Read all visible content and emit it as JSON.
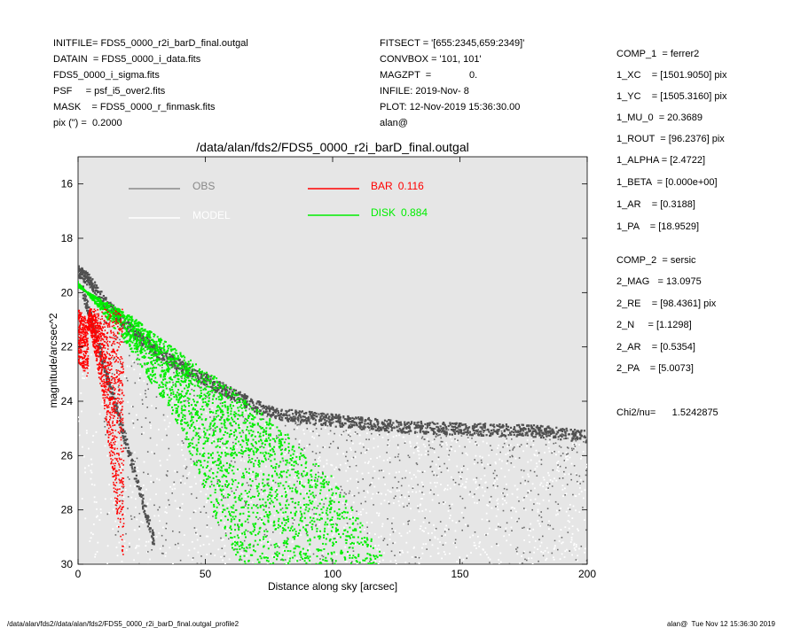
{
  "header_left": [
    "INITFILE= FDS5_0000_r2i_barD_final.outgal",
    "DATAIN  = FDS5_0000_i_data.fits",
    "FDS5_0000_i_sigma.fits",
    "PSF     = psf_i5_over2.fits",
    "MASK    = FDS5_0000_r_finmask.fits",
    "pix (\") =  0.2000"
  ],
  "header_mid": [
    "FITSECT = '[655:2345,659:2349]'",
    "CONVBOX = '101, 101'",
    "MAGZPT  =              0.",
    "INFILE: 2019-Nov- 8",
    "PLOT: 12-Nov-2019 15:36:30.00",
    "alan@"
  ],
  "params": [
    "COMP_1  = ferrer2",
    "1_XC    = [1501.9050] pix",
    "1_YC    = [1505.3160] pix",
    "1_MU_0  = 20.3689",
    "1_ROUT  = [96.2376] pix",
    "1_ALPHA = [2.4722]",
    "1_BETA  = [0.000e+00]",
    "1_AR    = [0.3188]",
    "1_PA    = [18.9529]",
    "",
    "COMP_2  = sersic",
    "2_MAG   = 13.0975",
    "2_RE    = [98.4361] pix",
    "2_N     = [1.1298]",
    "2_AR    = [0.5354]",
    "2_PA    = [5.0073]",
    "",
    "",
    "Chi2/nu=      1.5242875"
  ],
  "footer_left": "/data/alan/fds2//data/alan/fds2/FDS5_0000_r2i_barD_final.outgal_profile2",
  "footer_right": "alan@  Tue Nov 12 15:36:30 2019",
  "colors": {
    "background": "#e6e6e6",
    "obs": "#505050",
    "model": "#ffffff",
    "bar": "#ff0000",
    "disk": "#00ee00"
  },
  "chart_data": {
    "type": "scatter",
    "title": "/data/alan/fds2/FDS5_0000_r2i_barD_final.outgal",
    "xlabel": "Distance along sky [arcsec]",
    "ylabel": "magnitude/arcsec^2",
    "xlim": [
      0,
      200
    ],
    "ylim": [
      30,
      15
    ],
    "y_inverted": true,
    "xticks": [
      0,
      50,
      100,
      150,
      200
    ],
    "yticks": [
      16,
      18,
      20,
      22,
      24,
      26,
      28,
      30
    ],
    "grid": false,
    "legend_position": "top",
    "legend": [
      {
        "name": "OBS",
        "color": "#888888"
      },
      {
        "name": "MODEL",
        "color": "#ffffff"
      },
      {
        "name": "BAR",
        "value": "0.116",
        "color": "#ff0000"
      },
      {
        "name": "DISK",
        "value": "0.884",
        "color": "#00ee00"
      }
    ],
    "series": [
      {
        "name": "OBS",
        "profile": [
          [
            0,
            19.2
          ],
          [
            5,
            19.6
          ],
          [
            10,
            20.3
          ],
          [
            20,
            21.3
          ],
          [
            30,
            22.1
          ],
          [
            40,
            22.7
          ],
          [
            50,
            23.2
          ],
          [
            60,
            23.7
          ],
          [
            70,
            24.2
          ],
          [
            80,
            24.5
          ],
          [
            90,
            24.6
          ],
          [
            100,
            24.7
          ],
          [
            120,
            24.9
          ],
          [
            140,
            25.0
          ],
          [
            160,
            25.05
          ],
          [
            180,
            25.1
          ],
          [
            200,
            25.3
          ]
        ]
      },
      {
        "name": "BAR",
        "profile": [
          [
            0,
            20.5
          ],
          [
            5,
            21.5
          ],
          [
            10,
            24.0
          ],
          [
            15,
            28.0
          ],
          [
            18,
            30.0
          ]
        ]
      },
      {
        "name": "DISK",
        "inner_edge": [
          [
            0,
            19.6
          ],
          [
            20,
            22.0
          ],
          [
            40,
            25.0
          ],
          [
            55,
            28.5
          ],
          [
            64,
            30.0
          ]
        ],
        "outer_edge": [
          [
            0,
            19.8
          ],
          [
            20,
            20.8
          ],
          [
            40,
            22.2
          ],
          [
            60,
            23.5
          ],
          [
            80,
            25.0
          ],
          [
            100,
            26.8
          ],
          [
            122,
            30.0
          ]
        ]
      }
    ]
  }
}
